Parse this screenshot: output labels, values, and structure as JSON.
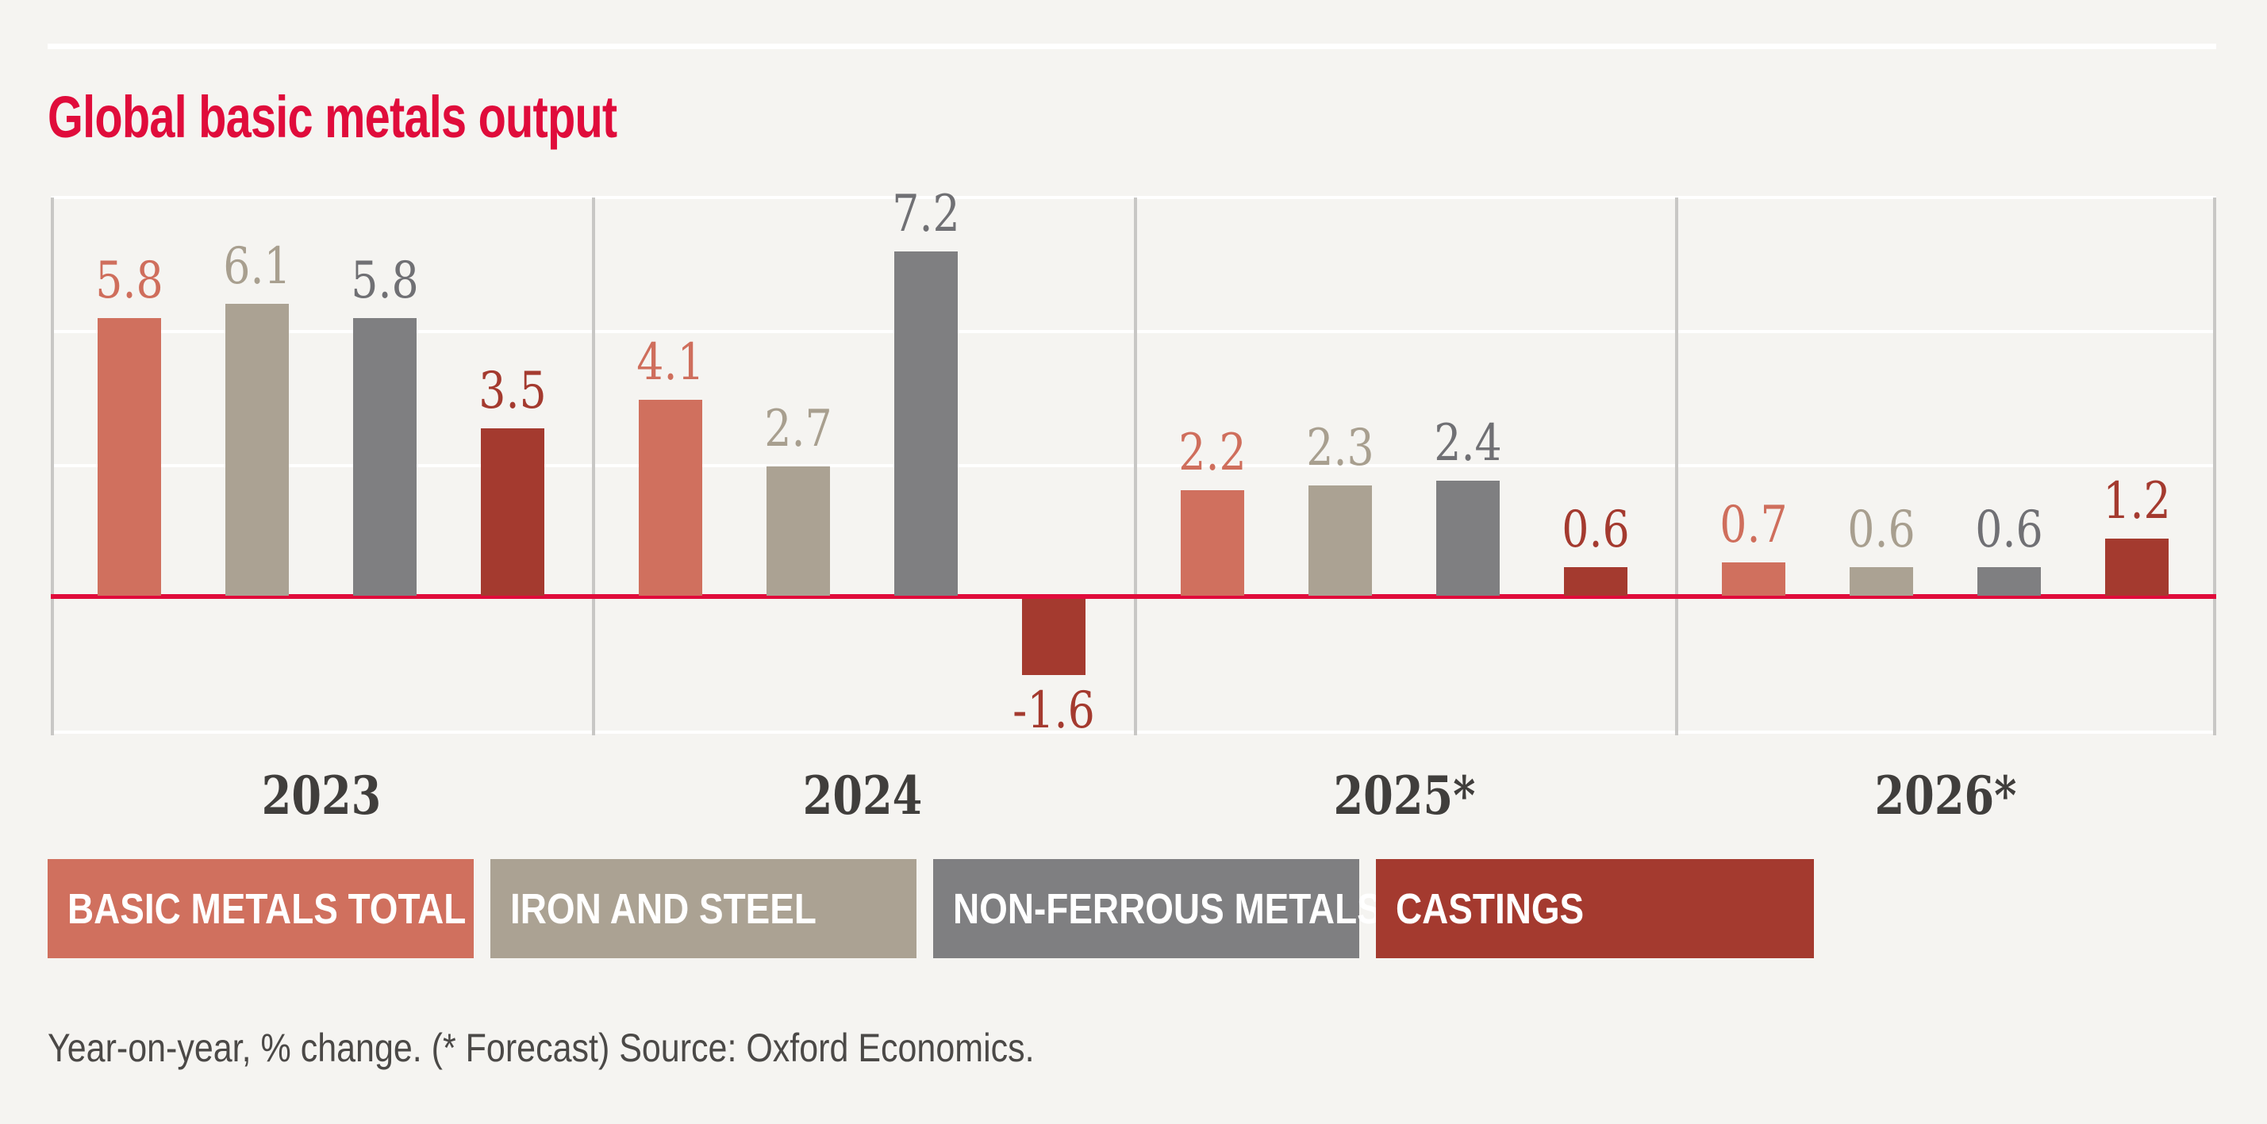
{
  "title": "Global basic metals output",
  "footnote": "Year-on-year, % change. (* Forecast) Source: Oxford Economics.",
  "colors": {
    "accent_red": "#e00c3b",
    "background": "#f5f4f1",
    "gridline": "#ffffff",
    "separator": "#c8c7c5",
    "axis_text": "#403e3c"
  },
  "legend": {
    "items": [
      "BASIC METALS TOTAL",
      "IRON AND STEEL",
      "NON-FERROUS METALS",
      "CASTINGS"
    ]
  },
  "chart_data": {
    "type": "bar",
    "title": "Global basic metals output",
    "categories": [
      "2023",
      "2024",
      "2025*",
      "2026*"
    ],
    "series": [
      {
        "name": "BASIC METALS TOTAL",
        "color": "#d0705e",
        "label_color": "#cf6e5c",
        "values": [
          5.8,
          4.1,
          2.2,
          0.7
        ]
      },
      {
        "name": "IRON AND STEEL",
        "color": "#aba293",
        "label_color": "#a89f8f",
        "values": [
          6.1,
          2.7,
          2.3,
          0.6
        ]
      },
      {
        "name": "NON-FERROUS METALS",
        "color": "#7f7f81",
        "label_color": "#707074",
        "values": [
          5.8,
          7.2,
          2.4,
          0.6
        ]
      },
      {
        "name": "CASTINGS",
        "color": "#a43a2f",
        "label_color": "#a43a2f",
        "values": [
          3.5,
          -1.6,
          0.6,
          1.2
        ]
      }
    ],
    "xlabel": "",
    "ylabel": "Year-on-year, % change",
    "ylim": [
      -2.9,
      8.3
    ],
    "zero_line": true,
    "grid": "horizontal, unlabeled",
    "data_labels": true,
    "legend_position": "bottom"
  }
}
